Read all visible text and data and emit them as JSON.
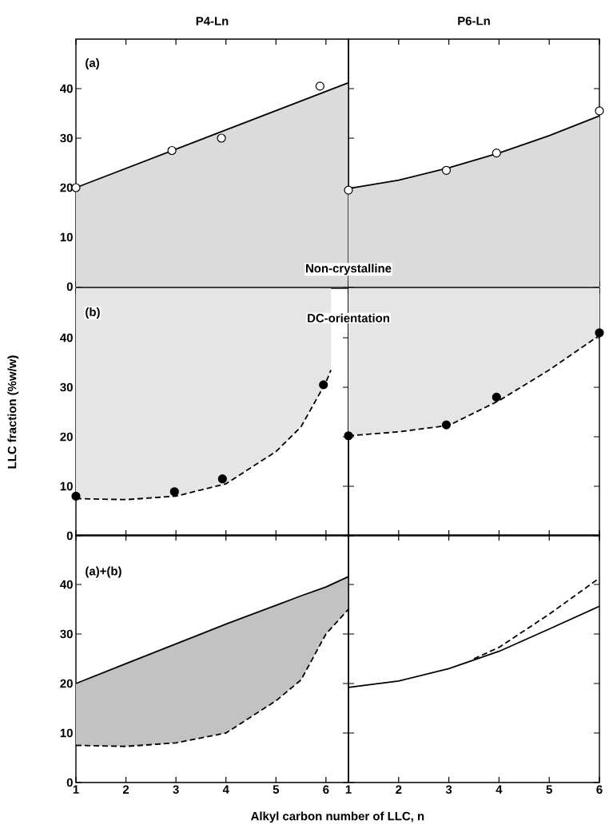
{
  "chart_data": [
    {
      "type": "area",
      "title": "P4-Ln",
      "annotations": [
        "(a)"
      ],
      "xlim": [
        1,
        6.45
      ],
      "ylim": [
        0,
        50
      ],
      "xticks": [
        1,
        2,
        3,
        4,
        5,
        6
      ],
      "yticks": [
        0,
        10,
        20,
        30,
        40
      ],
      "tick_labels": "y",
      "series": [
        {
          "color": "#000000",
          "x": [
            1,
            6.45
          ],
          "values": [
            20,
            41.2
          ]
        },
        {
          "type": "scatter",
          "marker": "circle",
          "color": "#ffffff",
          "x": [
            1,
            2.92,
            3.91,
            5.88
          ],
          "values": [
            20,
            27.5,
            30,
            40.5
          ]
        }
      ]
    },
    {
      "type": "area",
      "title": "P6-Ln",
      "annotations": [
        "Non-crystalline"
      ],
      "xlim": [
        1,
        6
      ],
      "ylim": [
        0,
        50
      ],
      "xticks": [
        1,
        2,
        3,
        4,
        5,
        6
      ],
      "yticks": [
        0,
        10,
        20,
        30,
        40
      ],
      "tick_labels": false,
      "series": [
        {
          "color": "#000000",
          "x": [
            1,
            2,
            3,
            4,
            5,
            6
          ],
          "values": [
            19.8,
            21.5,
            24,
            27,
            30.5,
            34.5
          ]
        },
        {
          "type": "scatter",
          "marker": "circle",
          "color": "#ffffff",
          "x": [
            1,
            2.95,
            3.95,
            6
          ],
          "values": [
            19.5,
            23.5,
            27,
            35.5
          ]
        }
      ]
    },
    {
      "type": "line",
      "ylabel": "LLC fraction (%w/w)",
      "annotations": [
        "(b)"
      ],
      "xlim": [
        1,
        6.45
      ],
      "ylim": [
        0,
        50
      ],
      "xticks": [
        1,
        2,
        3,
        4,
        5,
        6
      ],
      "yticks": [
        0,
        10,
        20,
        30,
        40
      ],
      "tick_labels": "y",
      "series": [
        {
          "line_style": "dashed",
          "color": "#000000",
          "x": [
            1,
            2,
            3,
            4,
            5,
            5.5,
            6,
            6.1
          ],
          "values": [
            7.5,
            7.3,
            8,
            10.5,
            17,
            22,
            31,
            33.5
          ],
          "lower": [
            7.5,
            7.3,
            8,
            10.5,
            17,
            22,
            31,
            33.5
          ],
          "upper": [
            50,
            50,
            50,
            50,
            50,
            50,
            50,
            50
          ]
        },
        {
          "type": "scatter",
          "marker": "circle",
          "color": "#000000",
          "x": [
            1,
            2.97,
            3.93,
            5.95
          ],
          "values": [
            8,
            8.9,
            11.5,
            30.5
          ]
        }
      ]
    },
    {
      "type": "line",
      "annotations": [
        "DC-orientation"
      ],
      "xlim": [
        1,
        6
      ],
      "ylim": [
        0,
        50
      ],
      "xticks": [
        1,
        2,
        3,
        4,
        5,
        6
      ],
      "yticks": [
        0,
        10,
        20,
        30,
        40
      ],
      "tick_labels": false,
      "series": [
        {
          "line_style": "dashed",
          "color": "#000000",
          "x": [
            1,
            2,
            3,
            4,
            5,
            6
          ],
          "values": [
            20.2,
            21,
            22.3,
            27.3,
            33.5,
            40.5
          ],
          "lower": [
            20.2,
            21,
            22.3,
            27.3,
            33.5,
            40.5
          ],
          "upper": [
            50,
            50,
            50,
            50,
            50,
            50
          ]
        },
        {
          "type": "scatter",
          "marker": "circle",
          "color": "#000000",
          "x": [
            1,
            2.95,
            3.95,
            6
          ],
          "values": [
            20.2,
            22.4,
            28,
            41
          ]
        }
      ]
    },
    {
      "type": "line",
      "xlabel": "Alkyl carbon number of LLC, n",
      "annotations": [
        "(a)+(b)"
      ],
      "xlim": [
        1,
        6.45
      ],
      "ylim": [
        0,
        50
      ],
      "xticks": [
        1,
        2,
        3,
        4,
        5,
        6
      ],
      "yticks": [
        0,
        10,
        20,
        30,
        40
      ],
      "series": [
        {
          "line_style": "solid",
          "color": "#000000",
          "x": [
            1,
            2,
            3,
            4,
            5,
            5.5,
            6,
            6.45
          ],
          "values": [
            20,
            24,
            28,
            32,
            35.8,
            37.7,
            39.5,
            41.6
          ],
          "lower": [
            7.5,
            7.3,
            8,
            10,
            16.5,
            20.7,
            30,
            35
          ],
          "upper": [
            20,
            24,
            28,
            32,
            35.8,
            37.7,
            39.5,
            41.6
          ]
        },
        {
          "line_style": "dashed",
          "color": "#000000",
          "x": [
            1,
            2,
            3,
            4,
            5,
            5.5,
            6,
            6.45
          ],
          "values": [
            7.5,
            7.3,
            8,
            10,
            16.5,
            20.7,
            30,
            35
          ]
        }
      ]
    },
    {
      "type": "line",
      "xlim": [
        1,
        6
      ],
      "ylim": [
        0,
        50
      ],
      "xticks": [
        1,
        2,
        3,
        4,
        5,
        6
      ],
      "yticks": [
        0,
        10,
        20,
        30,
        40
      ],
      "tick_labels": "x",
      "series": [
        {
          "line_style": "solid",
          "color": "#000000",
          "x": [
            1,
            2,
            3,
            4,
            5,
            6
          ],
          "values": [
            19.2,
            20.5,
            23,
            26.5,
            31,
            35.6
          ]
        },
        {
          "line_style": "dashed",
          "color": "#000000",
          "x": [
            3.5,
            4,
            5,
            6
          ],
          "values": [
            25,
            27.3,
            34,
            41.3
          ]
        }
      ]
    }
  ]
}
